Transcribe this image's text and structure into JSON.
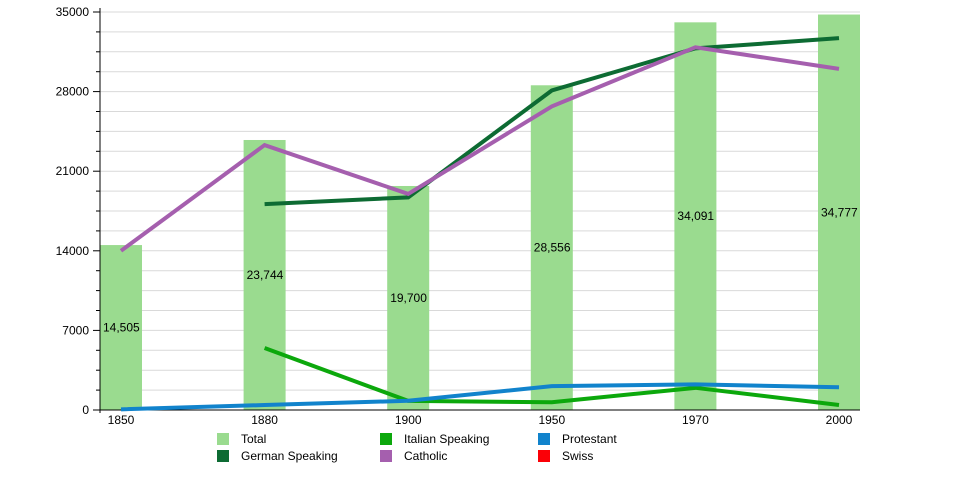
{
  "chart_data": {
    "type": "bar",
    "subtype": "bar-and-line-combo",
    "title": "",
    "xlabel": "",
    "ylabel": "",
    "categories": [
      "1850",
      "1880",
      "1900",
      "1950",
      "1970",
      "2000"
    ],
    "ylim": [
      0,
      35000
    ],
    "y_major_ticks": [
      0,
      7000,
      14000,
      21000,
      28000,
      35000
    ],
    "y_major_tick_labels": [
      "0",
      "7000",
      "14000",
      "21000",
      "28000",
      "35000"
    ],
    "y_minor_step": 1750,
    "grid": "horizontal-minor-lines",
    "legend_position": "bottom",
    "bar_series": {
      "name": "Total",
      "color": "#9adb8f",
      "values": [
        14505,
        23744,
        19700,
        28556,
        34091,
        34777
      ],
      "value_labels": [
        "14,505",
        "23,744",
        "19,700",
        "28,556",
        "34,091",
        "34,777"
      ]
    },
    "line_series": [
      {
        "name": "German Speaking",
        "color": "#0d6b33",
        "values": [
          null,
          18100,
          18700,
          28100,
          31800,
          32700
        ]
      },
      {
        "name": "Italian Speaking",
        "color": "#0ca80c",
        "values": [
          null,
          5450,
          800,
          680,
          1950,
          440
        ]
      },
      {
        "name": "Catholic",
        "color": "#a55fae",
        "values": [
          14000,
          23300,
          19000,
          26700,
          31900,
          30000
        ]
      },
      {
        "name": "Protestant",
        "color": "#1183cc",
        "values": [
          60,
          440,
          810,
          2100,
          2250,
          2000
        ]
      },
      {
        "name": "Swiss",
        "color": "#fb0007",
        "values": []
      }
    ]
  },
  "legend": {
    "items": [
      {
        "label": "Total",
        "color": "#9adb8f"
      },
      {
        "label": "Italian Speaking",
        "color": "#0ca80c"
      },
      {
        "label": "Protestant",
        "color": "#1183cc"
      },
      {
        "label": "German Speaking",
        "color": "#0d6b33"
      },
      {
        "label": "Catholic",
        "color": "#a55fae"
      },
      {
        "label": "Swiss",
        "color": "#fb0007"
      }
    ]
  },
  "style": {
    "gridline_color": "#d9d9d9",
    "axis_color": "#000000",
    "text_color": "#000000"
  }
}
